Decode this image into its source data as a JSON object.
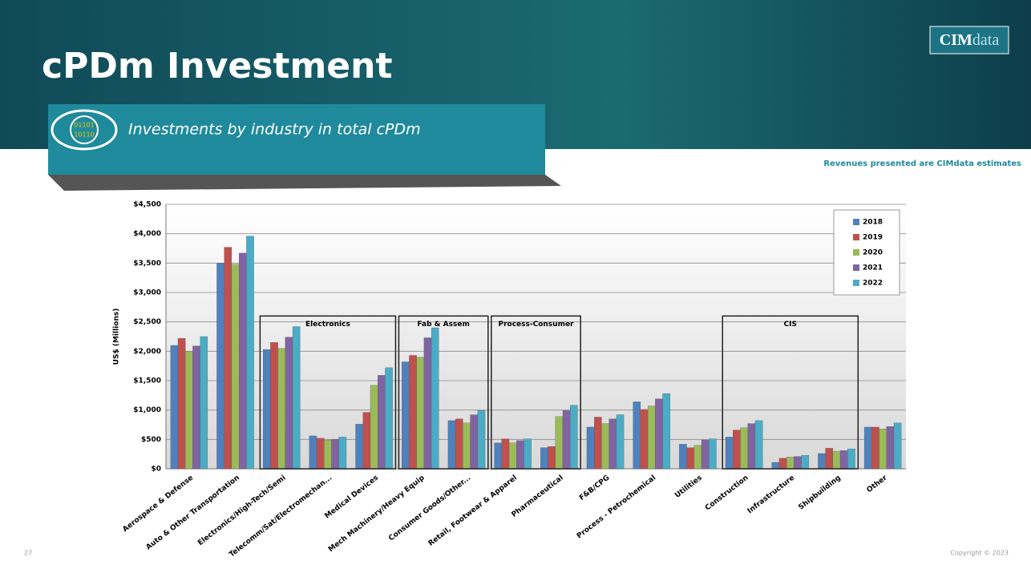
{
  "slide": {
    "title": "cPDm Investment",
    "subtitle": "Investments by industry in total cPDm",
    "logo": {
      "main": "CIM",
      "accent": "data"
    },
    "badge": [
      "01101",
      "10110"
    ],
    "note": "Revenues presented are CIMdata estimates",
    "page_number": "27",
    "copyright": "Copyright © 2023"
  },
  "chart_data": {
    "type": "bar",
    "ylabel": "US$ (Millions)",
    "categories": [
      "Aerospace & Defense",
      "Auto & Other Transportation",
      "Electronics/High-Tech/Semi",
      "Telecomm/Sat/Electromechan...",
      "Medical Devices",
      "Mech Machinery/Heavy Equip",
      "Consumer Goods/Other...",
      "Retail, Footwear & Apparel",
      "Pharmaceutical",
      "F&B/CPG",
      "Process - Petrochemical",
      "Utilities",
      "Construction",
      "Infrastructure",
      "Shipbuilding",
      "Other"
    ],
    "series": [
      {
        "name": "2018",
        "color": "#4f81bd",
        "values": [
          2100,
          3500,
          2030,
          560,
          760,
          1820,
          820,
          440,
          360,
          710,
          1140,
          420,
          540,
          110,
          260,
          710
        ]
      },
      {
        "name": "2019",
        "color": "#c0504d",
        "values": [
          2220,
          3770,
          2150,
          520,
          960,
          1930,
          850,
          510,
          380,
          880,
          1010,
          360,
          660,
          180,
          350,
          710
        ]
      },
      {
        "name": "2020",
        "color": "#9bbb59",
        "values": [
          2000,
          3480,
          2050,
          490,
          1420,
          1900,
          780,
          440,
          890,
          770,
          1070,
          400,
          700,
          200,
          300,
          680
        ]
      },
      {
        "name": "2021",
        "color": "#8064a2",
        "values": [
          2090,
          3670,
          2240,
          500,
          1590,
          2230,
          920,
          480,
          990,
          850,
          1190,
          490,
          770,
          210,
          310,
          720
        ]
      },
      {
        "name": "2022",
        "color": "#4bacc6",
        "values": [
          2250,
          3960,
          2420,
          540,
          1720,
          2400,
          990,
          510,
          1080,
          920,
          1280,
          510,
          820,
          230,
          340,
          780
        ]
      }
    ],
    "groups": [
      "Electronics",
      "Fab & Assem",
      "Process-Consumer",
      "CIS"
    ],
    "ylim": [
      0,
      4500
    ],
    "yticks": [
      {
        "value": 0,
        "label": "$0"
      },
      {
        "value": 500,
        "label": "$500"
      },
      {
        "value": 1000,
        "label": "$1,000"
      },
      {
        "value": 1500,
        "label": "$1,500"
      },
      {
        "value": 2000,
        "label": "$2,000"
      },
      {
        "value": 2500,
        "label": "$2,500"
      },
      {
        "value": 3000,
        "label": "$3,000"
      },
      {
        "value": 3500,
        "label": "$3,500"
      },
      {
        "value": 4000,
        "label": "$4,000"
      },
      {
        "value": 4500,
        "label": "$4,500"
      }
    ],
    "grid": true,
    "legend": "upper right"
  }
}
